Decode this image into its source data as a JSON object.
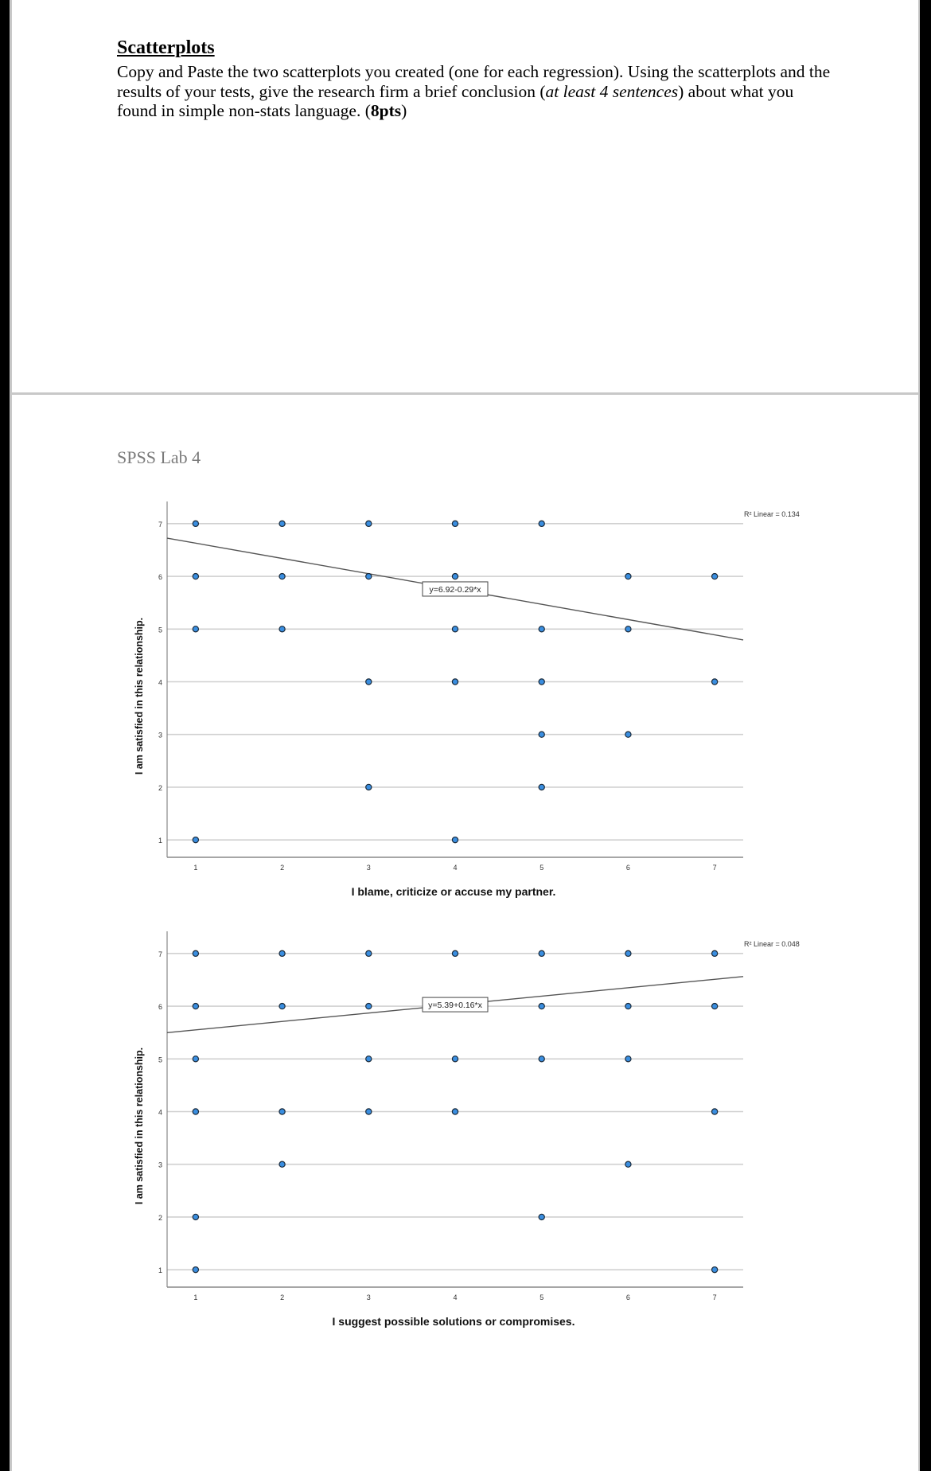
{
  "document": {
    "heading": "Scatterplots",
    "instructions": {
      "part1": "Copy and Paste the two scatterplots you created (one for each regression). Using the scatterplots and the results of your tests, give the research firm a brief conclusion (",
      "italic": "at least 4 sentences",
      "part2": ") about what you found in simple non-stats language. (",
      "bold": "8pts",
      "part3": ")"
    },
    "page_header": "SPSS Lab 4"
  },
  "colors": {
    "point_fill": "#3a8ee0",
    "point_stroke": "#1a2a3a",
    "grid": "#d0d0d0",
    "fit_line": "#555555"
  },
  "chart_data": [
    {
      "type": "scatter",
      "xlabel": "I blame, criticize or accuse my partner.",
      "ylabel": "I am satisfied in this relationship.",
      "xlim": [
        0.67,
        7.33
      ],
      "ylim": [
        0.67,
        7.33
      ],
      "xticks": [
        "1",
        "2",
        "3",
        "4",
        "5",
        "6",
        "7"
      ],
      "yticks": [
        "1",
        "2",
        "3",
        "4",
        "5",
        "6",
        "7"
      ],
      "grid": "horizontal",
      "points": [
        [
          1,
          7
        ],
        [
          2,
          7
        ],
        [
          3,
          7
        ],
        [
          4,
          7
        ],
        [
          5,
          7
        ],
        [
          1,
          6
        ],
        [
          2,
          6
        ],
        [
          3,
          6
        ],
        [
          4,
          6
        ],
        [
          6,
          6
        ],
        [
          7,
          6
        ],
        [
          1,
          5
        ],
        [
          2,
          5
        ],
        [
          4,
          5
        ],
        [
          5,
          5
        ],
        [
          6,
          5
        ],
        [
          3,
          4
        ],
        [
          4,
          4
        ],
        [
          5,
          4
        ],
        [
          7,
          4
        ],
        [
          5,
          3
        ],
        [
          6,
          3
        ],
        [
          3,
          2
        ],
        [
          5,
          2
        ],
        [
          1,
          1
        ],
        [
          4,
          1
        ]
      ],
      "fit": {
        "intercept": 6.92,
        "slope": -0.29,
        "equation": "y=6.92-0.29*x",
        "r2_label": "R² Linear = 0.134"
      }
    },
    {
      "type": "scatter",
      "xlabel": "I suggest possible solutions or compromises.",
      "ylabel": "I am satisfied in this relationship.",
      "xlim": [
        0.67,
        7.33
      ],
      "ylim": [
        0.67,
        7.33
      ],
      "xticks": [
        "1",
        "2",
        "3",
        "4",
        "5",
        "6",
        "7"
      ],
      "yticks": [
        "1",
        "2",
        "3",
        "4",
        "5",
        "6",
        "7"
      ],
      "grid": "horizontal",
      "points": [
        [
          1,
          7
        ],
        [
          2,
          7
        ],
        [
          3,
          7
        ],
        [
          4,
          7
        ],
        [
          5,
          7
        ],
        [
          6,
          7
        ],
        [
          7,
          7
        ],
        [
          1,
          6
        ],
        [
          2,
          6
        ],
        [
          3,
          6
        ],
        [
          5,
          6
        ],
        [
          6,
          6
        ],
        [
          7,
          6
        ],
        [
          1,
          5
        ],
        [
          3,
          5
        ],
        [
          4,
          5
        ],
        [
          5,
          5
        ],
        [
          6,
          5
        ],
        [
          1,
          4
        ],
        [
          2,
          4
        ],
        [
          3,
          4
        ],
        [
          4,
          4
        ],
        [
          7,
          4
        ],
        [
          2,
          3
        ],
        [
          6,
          3
        ],
        [
          1,
          2
        ],
        [
          5,
          2
        ],
        [
          1,
          1
        ],
        [
          7,
          1
        ]
      ],
      "fit": {
        "intercept": 5.39,
        "slope": 0.16,
        "equation": "y=5.39+0.16*x",
        "r2_label": "R² Linear = 0.048"
      }
    }
  ]
}
